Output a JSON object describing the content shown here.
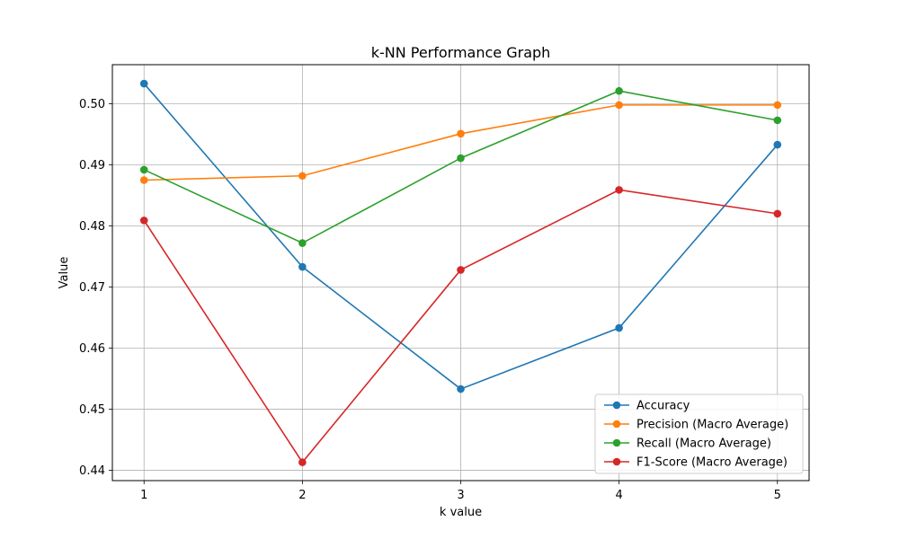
{
  "chart_data": {
    "type": "line",
    "title": "k-NN Performance Graph",
    "xlabel": "k value",
    "ylabel": "Value",
    "x": [
      1,
      2,
      3,
      4,
      5
    ],
    "xlim": [
      0.8,
      5.2
    ],
    "ylim": [
      0.4383,
      0.5064
    ],
    "yticks": [
      0.44,
      0.45,
      0.46,
      0.47,
      0.48,
      0.49,
      0.5
    ],
    "ytick_labels": [
      "0.44",
      "0.45",
      "0.46",
      "0.47",
      "0.48",
      "0.49",
      "0.50"
    ],
    "xtick_labels": [
      "1",
      "2",
      "3",
      "4",
      "5"
    ],
    "grid": true,
    "legend_position": "bottom-right",
    "series": [
      {
        "name": "Accuracy",
        "color": "#1f77b4",
        "values": [
          0.5033,
          0.4733,
          0.4533,
          0.4633,
          0.4933
        ]
      },
      {
        "name": "Precision (Macro Average)",
        "color": "#ff7f0e",
        "values": [
          0.4875,
          0.4882,
          0.4951,
          0.4998,
          0.4998
        ]
      },
      {
        "name": "Recall (Macro Average)",
        "color": "#2ca02c",
        "values": [
          0.4892,
          0.4772,
          0.4911,
          0.5021,
          0.4973
        ]
      },
      {
        "name": "F1-Score (Macro Average)",
        "color": "#d62728",
        "values": [
          0.4809,
          0.4413,
          0.4728,
          0.4859,
          0.482
        ]
      }
    ]
  }
}
